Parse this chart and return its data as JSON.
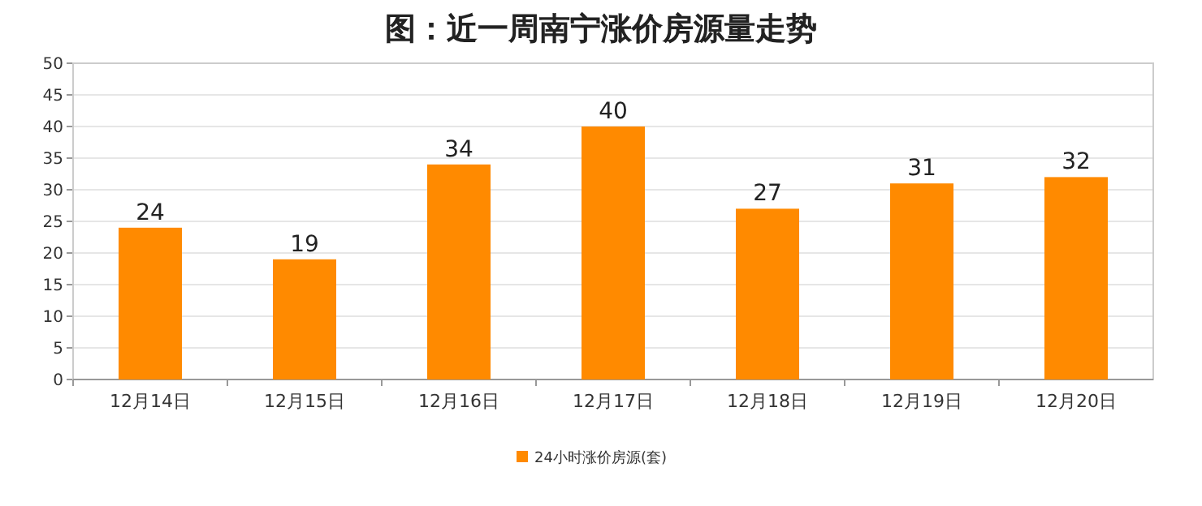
{
  "chart_data": {
    "type": "bar",
    "title": "图：近一周南宁涨价房源量走势",
    "categories": [
      "12月14日",
      "12月15日",
      "12月16日",
      "12月17日",
      "12月18日",
      "12月19日",
      "12月20日"
    ],
    "series": [
      {
        "name": "24小时涨价房源(套)",
        "color": "#ff8a00",
        "values": [
          24,
          19,
          34,
          40,
          27,
          31,
          32
        ]
      }
    ],
    "ylim": [
      0,
      50
    ],
    "yticks": [
      0,
      5,
      10,
      15,
      20,
      25,
      30,
      35,
      40,
      45,
      50
    ],
    "grid": "y",
    "legend": "bottom",
    "data_labels": true
  }
}
